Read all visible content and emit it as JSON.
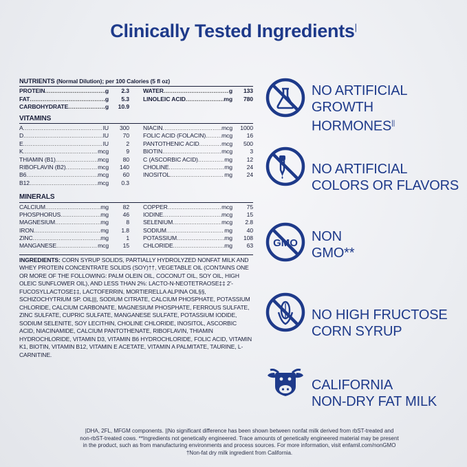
{
  "title": "Clinically Tested Ingredients",
  "title_mark": "|",
  "nutrients": {
    "heading": "NUTRIENTS",
    "subheading": "(Normal Dilution); per 100 Calories (5 fl oz)",
    "left": [
      {
        "name": "PROTEIN",
        "unit": "g",
        "value": "2.3"
      },
      {
        "name": "FAT",
        "unit": "g",
        "value": "5.3"
      },
      {
        "name": "CARBOHYDRATE",
        "unit": "g",
        "value": "10.9"
      }
    ],
    "right": [
      {
        "name": "WATER",
        "unit": "g",
        "value": "133"
      },
      {
        "name": "LINOLEIC ACID",
        "unit": "mg",
        "value": "780"
      }
    ]
  },
  "vitamins": {
    "heading": "VITAMINS",
    "left": [
      {
        "name": "A",
        "unit": "IU",
        "value": "300"
      },
      {
        "name": "D",
        "unit": "IU",
        "value": "70"
      },
      {
        "name": "E",
        "unit": "IU",
        "value": "2"
      },
      {
        "name": "K",
        "unit": "mcg",
        "value": "9"
      },
      {
        "name": "THIAMIN (B1)",
        "unit": "mcg",
        "value": "80"
      },
      {
        "name": "RIBOFLAVIN (B2)",
        "unit": "mcg",
        "value": "140"
      },
      {
        "name": "B6",
        "unit": "mcg",
        "value": "60"
      },
      {
        "name": "B12",
        "unit": "mcg",
        "value": "0.3"
      }
    ],
    "right": [
      {
        "name": "NIACIN",
        "unit": "mcg",
        "value": "1000"
      },
      {
        "name": "FOLIC ACID (FOLACIN)",
        "unit": "mcg",
        "value": "16"
      },
      {
        "name": "PANTOTHENIC ACID",
        "unit": "mcg",
        "value": "500"
      },
      {
        "name": "BIOTIN",
        "unit": "mcg",
        "value": "3"
      },
      {
        "name": "C (ASCORBIC ACID)",
        "unit": "mg",
        "value": "12"
      },
      {
        "name": "CHOLINE",
        "unit": "mg",
        "value": "24"
      },
      {
        "name": "INOSITOL",
        "unit": "mg",
        "value": "24"
      }
    ]
  },
  "minerals": {
    "heading": "MINERALS",
    "left": [
      {
        "name": "CALCIUM",
        "unit": "mg",
        "value": "82"
      },
      {
        "name": "PHOSPHORUS",
        "unit": "mg",
        "value": "46"
      },
      {
        "name": "MAGNESIUM",
        "unit": "mg",
        "value": "8"
      },
      {
        "name": "IRON",
        "unit": "mg",
        "value": "1.8"
      },
      {
        "name": "ZINC",
        "unit": "mg",
        "value": "1"
      },
      {
        "name": "MANGANESE",
        "unit": "mcg",
        "value": "15"
      }
    ],
    "right": [
      {
        "name": "COPPER",
        "unit": "mcg",
        "value": "75"
      },
      {
        "name": "IODINE",
        "unit": "mcg",
        "value": "15"
      },
      {
        "name": "SELENIUM",
        "unit": "mcg",
        "value": "2.8"
      },
      {
        "name": "SODIUM",
        "unit": "mg",
        "value": "40"
      },
      {
        "name": "POTASSIUM",
        "unit": "mg",
        "value": "108"
      },
      {
        "name": "CHLORIDE",
        "unit": "mg",
        "value": "63"
      }
    ]
  },
  "ingredients": {
    "label": "INGREDIENTS:",
    "text": "CORN SYRUP SOLIDS, PARTIALLY HYDROLYZED NONFAT MILK AND WHEY PROTEIN CONCENTRATE SOLIDS (SOY)††, VEGETABLE OIL (CONTAINS ONE OR MORE OF THE FOLLOWING: PALM OLEIN OIL, COCONUT OIL, SOY OIL, HIGH OLEIC SUNFLOWER OIL), AND LESS THAN 2%: LACTO-N-NEOTETRAOSE‡‡ 2'-FUCOSYLLACTOSE‡‡, LACTOFERRIN, MORTIERELLA ALPINA OIL§§, SCHIZOCHYTRIUM SP. OIL|||, SODIUM CITRATE, CALCIUM PHOSPHATE, POTASSIUM CHLORIDE, CALCIUM CARBONATE, MAGNESIUM PHOSPHATE, FERROUS SULFATE, ZINC SULFATE, CUPRIC SULFATE, MANGANESE SULFATE, POTASSIUM IODIDE, SODIUM SELENITE, SOY LECITHIN, CHOLINE CHLORIDE, INOSITOL, ASCORBIC ACID, NIACINAMIDE, CALCIUM PANTOTHENATE, RIBOFLAVIN, THIAMIN HYDROCHLORIDE, VITAMIN D3, VITAMIN B6 HYDROCHLORIDE, FOLIC ACID, VITAMIN K1, BIOTIN, VITAMIN B12, VITAMIN E ACETATE, VITAMIN A PALMITATE, TAURINE, L-CARNITINE."
  },
  "footnotes": [
    "|DHA, 2FL, MFGM components. ||No significant difference has been shown between nonfat milk derived from rbST-treated and",
    "non-rbST-treated cows. **Ingredients not genetically engineered. Trace amounts of genetically engineered material may be present",
    "in the product, such as from manufacturing environments and process sources. For more information, visit enfamil.com/nonGMO",
    "†Non-fat dry milk ingredient from California."
  ],
  "claims": [
    {
      "icon": "flask-prohibited-icon",
      "lines": [
        "NO ARTIFICIAL",
        "GROWTH",
        "HORMONES"
      ],
      "mark": "||"
    },
    {
      "icon": "dropper-prohibited-icon",
      "lines": [
        "NO ARTIFICIAL",
        "COLORS OR FLAVORS"
      ],
      "mark": ""
    },
    {
      "icon": "gmo-prohibited-icon",
      "lines": [
        "NON",
        "GMO**"
      ],
      "mark": "",
      "badge": "GMO"
    },
    {
      "icon": "corn-prohibited-icon",
      "lines": [
        "NO HIGH FRUCTOSE",
        "CORN SYRUP"
      ],
      "mark": ""
    },
    {
      "icon": "cow-icon",
      "lines": [
        "CALIFORNIA",
        "NON-DRY FAT MILK"
      ],
      "mark": ""
    }
  ],
  "colors": {
    "accent": "#1e3a8a",
    "text": "#1a1f3a"
  }
}
